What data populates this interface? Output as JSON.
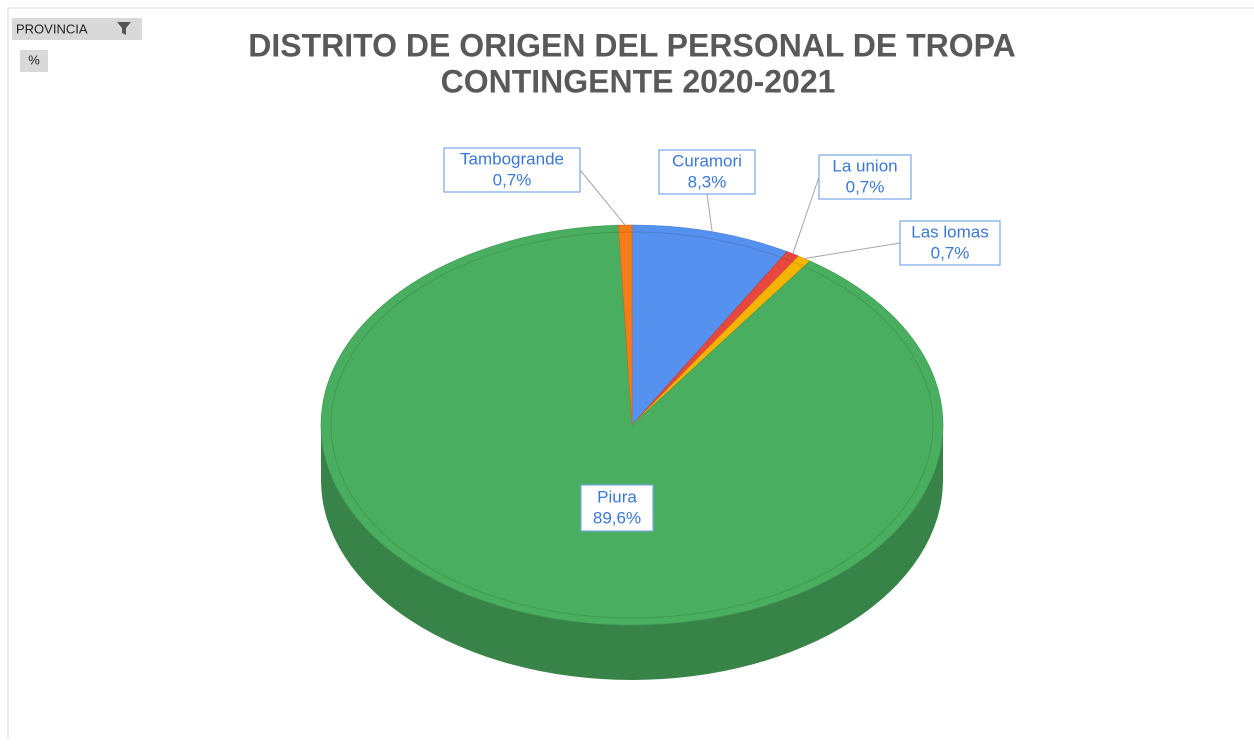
{
  "filter_button": "PROVINCIA",
  "value_button": "%",
  "chart_data": {
    "type": "pie3d",
    "title": [
      "DISTRITO DE ORIGEN DEL PERSONAL DE TROPA",
      "CONTINGENTE 2020-2021"
    ],
    "categories": [
      "Curamori",
      "La union",
      "Las lomas",
      "Piura",
      "Tambogrande"
    ],
    "values": [
      8.3,
      0.7,
      0.7,
      89.6,
      0.7
    ],
    "value_labels": [
      "8,3%",
      "0,7%",
      "0,7%",
      "89,6%",
      "0,7%"
    ],
    "colors": [
      "#5591ef",
      "#e8473f",
      "#f5b400",
      "#4aae60",
      "#f57c1a"
    ]
  }
}
